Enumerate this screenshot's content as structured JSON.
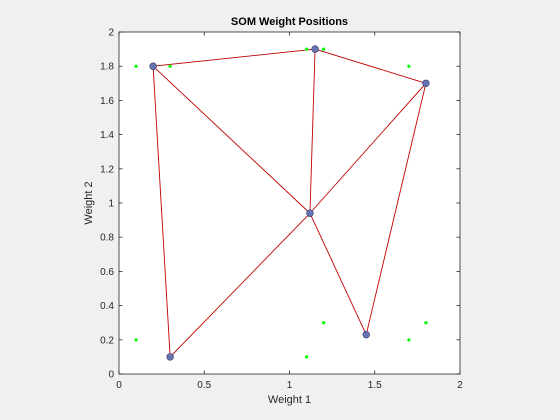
{
  "chart_data": {
    "type": "scatter",
    "title": "SOM Weight Positions",
    "xlabel": "Weight 1",
    "ylabel": "Weight 2",
    "xlim": [
      0,
      2
    ],
    "ylim": [
      0,
      2
    ],
    "xticks": [
      0,
      0.5,
      1,
      1.5,
      2
    ],
    "yticks": [
      0,
      0.2,
      0.4,
      0.6,
      0.8,
      1,
      1.2,
      1.4,
      1.6,
      1.8,
      2
    ],
    "xtick_labels": [
      "0",
      "0.5",
      "1",
      "1.5",
      "2"
    ],
    "ytick_labels": [
      "0",
      "0.2",
      "0.4",
      "0.6",
      "0.8",
      "1",
      "1.2",
      "1.4",
      "1.6",
      "1.8",
      "2"
    ],
    "grid": false,
    "inputs": {
      "color": "#00ff00",
      "points": [
        [
          0.1,
          1.8
        ],
        [
          0.3,
          1.8
        ],
        [
          1.1,
          1.9
        ],
        [
          1.2,
          1.9
        ],
        [
          1.7,
          1.8
        ],
        [
          0.1,
          0.2
        ],
        [
          1.1,
          0.1
        ],
        [
          1.2,
          0.3
        ],
        [
          1.7,
          0.2
        ],
        [
          1.8,
          0.3
        ]
      ]
    },
    "neurons": {
      "color": "#6573b0",
      "edge_color": "#3a3a70",
      "points": [
        [
          0.2,
          1.8
        ],
        [
          1.15,
          1.9
        ],
        [
          1.8,
          1.7
        ],
        [
          1.12,
          0.94
        ],
        [
          0.3,
          0.1
        ],
        [
          1.45,
          0.23
        ]
      ]
    },
    "links": {
      "color": "#c00000",
      "pairs": [
        [
          0,
          1
        ],
        [
          1,
          2
        ],
        [
          0,
          3
        ],
        [
          1,
          3
        ],
        [
          2,
          3
        ],
        [
          0,
          4
        ],
        [
          4,
          3
        ],
        [
          3,
          5
        ],
        [
          2,
          5
        ]
      ]
    }
  }
}
